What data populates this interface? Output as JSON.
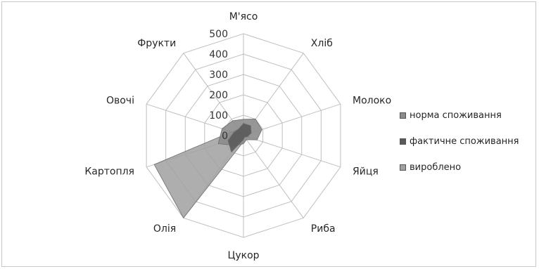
{
  "chart_data": {
    "type": "radar",
    "categories": [
      "М'ясо",
      "Хліб",
      "Молоко",
      "Яйця",
      "Риба",
      "Цукор",
      "Олія",
      "Картопля",
      "Овочі",
      "Фрукти"
    ],
    "radial_ticks": [
      "0",
      "100",
      "200",
      "300",
      "400",
      "500"
    ],
    "rmax": 500,
    "series": [
      {
        "name": "норма споживання",
        "color": "#8c8c8c",
        "values": [
          80,
          100,
          95,
          70,
          25,
          40,
          60,
          130,
          110,
          90
        ]
      },
      {
        "name": "фактичне споживання",
        "color": "#5a5a5a",
        "values": [
          60,
          60,
          40,
          20,
          10,
          20,
          100,
          80,
          50,
          40
        ]
      },
      {
        "name": "вироблено",
        "color": "#a0a0a0",
        "values": [
          30,
          40,
          20,
          30,
          5,
          30,
          500,
          460,
          60,
          40
        ]
      }
    ],
    "grid": true,
    "legend": "right"
  }
}
